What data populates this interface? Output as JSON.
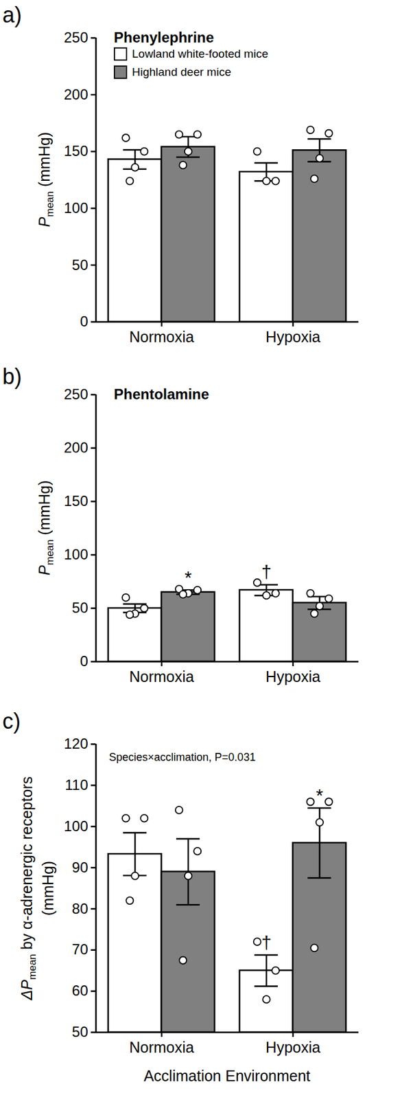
{
  "chart_data": [
    {
      "type": "bar",
      "panel": "a)",
      "title": "Phenylephrine",
      "categories": [
        "Normoxia",
        "Hypoxia"
      ],
      "series": [
        {
          "name": "Lowland white-footed mice",
          "color": "#ffffff",
          "values": [
            143,
            132
          ],
          "errors": [
            8.5,
            8
          ],
          "points": [
            [
              162,
              150,
              136,
              124
            ],
            [
              150,
              124,
              124
            ]
          ]
        },
        {
          "name": "Highland deer mice",
          "color": "#808080",
          "values": [
            154,
            151
          ],
          "errors": [
            9,
            10
          ],
          "points": [
            [
              165,
              165,
              150,
              138
            ],
            [
              169,
              166,
              144,
              126
            ]
          ]
        }
      ],
      "ylabel": {
        "prefix": "P",
        "subscript": "mean",
        "suffix": " (mmHg)"
      },
      "ylim": [
        0,
        250
      ],
      "yticks": [
        0,
        50,
        100,
        150,
        200,
        250
      ],
      "legend": "top-left"
    },
    {
      "type": "bar",
      "panel": "b)",
      "title": "Phentolamine",
      "categories": [
        "Normoxia",
        "Hypoxia"
      ],
      "series": [
        {
          "name": "Lowland white-footed mice",
          "color": "#ffffff",
          "values": [
            50,
            67
          ],
          "errors": [
            4,
            5
          ],
          "points": [
            [
              60,
              50,
              45,
              44
            ],
            [
              74,
              64,
              62
            ]
          ]
        },
        {
          "name": "Highland deer mice",
          "color": "#808080",
          "values": [
            65,
            55
          ],
          "errors": [
            2,
            6
          ],
          "points": [
            [
              68,
              67,
              64,
              63
            ],
            [
              64,
              59,
              52,
              45
            ]
          ]
        }
      ],
      "annotations": [
        {
          "category": "Normoxia",
          "series": "Highland deer mice",
          "text": "*"
        },
        {
          "category": "Hypoxia",
          "series": "Lowland white-footed mice",
          "text": "†"
        }
      ],
      "ylabel": {
        "prefix": "P",
        "subscript": "mean",
        "suffix": " (mmHg)"
      },
      "ylim": [
        0,
        250
      ],
      "yticks": [
        0,
        50,
        100,
        150,
        200,
        250
      ]
    },
    {
      "type": "bar",
      "panel": "c)",
      "stat_label": "Species×acclimation, P=0.031",
      "categories": [
        "Normoxia",
        "Hypoxia"
      ],
      "series": [
        {
          "name": "Lowland white-footed mice",
          "color": "#ffffff",
          "values": [
            93.3,
            65
          ],
          "errors": [
            5.2,
            3.8
          ],
          "points": [
            [
              102,
              102,
              88,
              82
            ],
            [
              72,
              65,
              58
            ]
          ]
        },
        {
          "name": "Highland deer mice",
          "color": "#808080",
          "values": [
            89,
            96
          ],
          "errors": [
            8,
            8.5
          ],
          "points": [
            [
              104,
              94,
              88,
              67.5
            ],
            [
              106,
              106,
              101,
              70.5
            ]
          ]
        }
      ],
      "annotations": [
        {
          "category": "Hypoxia",
          "series": "Lowland white-footed mice",
          "text": "†"
        },
        {
          "category": "Hypoxia",
          "series": "Highland deer mice",
          "text": "*"
        }
      ],
      "ylabel": {
        "prefix": "ΔP",
        "subscript": "mean",
        "suffix": " by α-adrenergic receptors",
        "line2": "(mmHg)"
      },
      "xlabel": "Acclimation Environment",
      "ylim": [
        50,
        120
      ],
      "yticks": [
        50,
        60,
        70,
        80,
        90,
        100,
        110,
        120
      ]
    }
  ]
}
